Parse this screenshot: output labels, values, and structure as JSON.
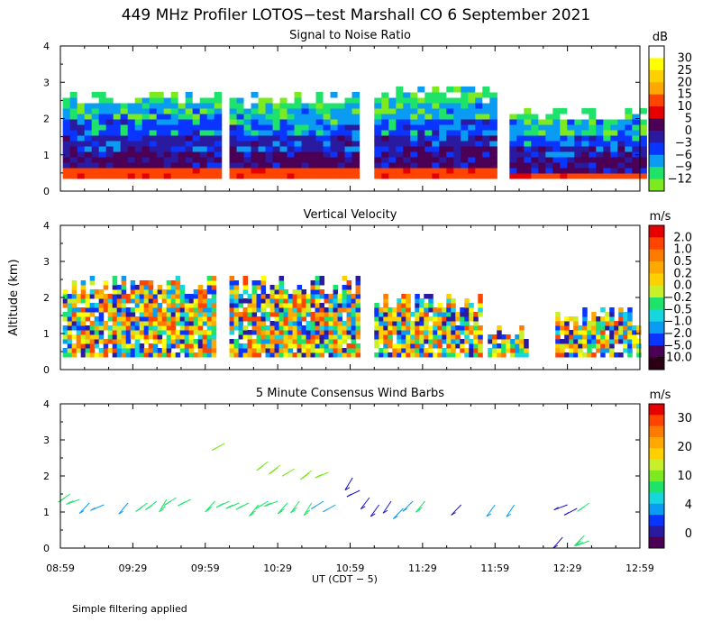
{
  "title": "449 MHz Profiler LOTOS−test Marshall CO  6 September 2021",
  "footer": "Simple filtering applied",
  "colors": {
    "palette": [
      "#4b0055",
      "#2a1aa0",
      "#0a34ff",
      "#0a9cf2",
      "#16d6e0",
      "#1ee36a",
      "#7cea1e",
      "#c8f02a",
      "#ffff00",
      "#ffd000",
      "#ffa800",
      "#ff7a00",
      "#ff3c00",
      "#e60000",
      "#ffffff"
    ]
  },
  "chart_data": [
    {
      "type": "heatmap",
      "title": "Signal to Noise Ratio",
      "units": "dB",
      "ylabel": "",
      "ylim": [
        0,
        4
      ],
      "yticks": [
        "0",
        "1",
        "2",
        "3",
        "4"
      ],
      "colorbar_labels": [
        "30",
        "25",
        "20",
        "15",
        "10",
        "5",
        "0",
        "−3",
        "−6",
        "−9",
        "−12"
      ],
      "colorbar_colors": [
        "#ffffff",
        "#ffff00",
        "#ffd000",
        "#ffa800",
        "#ff4400",
        "#e60000",
        "#4b0055",
        "#2a1aa0",
        "#0a34ff",
        "#0a9cf2",
        "#1ee36a",
        "#7cea1e"
      ],
      "data_segments": [
        {
          "start": "09:00",
          "end": "10:05",
          "top_km": 2.7
        },
        {
          "start": "10:09",
          "end": "11:02",
          "top_km": 2.6
        },
        {
          "start": "11:09",
          "end": "11:58",
          "top_km": 2.8
        },
        {
          "start": "12:05",
          "end": "12:59",
          "top_km": 2.2
        }
      ]
    },
    {
      "type": "heatmap",
      "title": "Vertical Velocity",
      "units": "m/s",
      "ylabel": "Altitude (km)",
      "ylim": [
        0,
        4
      ],
      "yticks": [
        "0",
        "1",
        "2",
        "3",
        "4"
      ],
      "colorbar_labels": [
        "2.0",
        "1.0",
        "0.5",
        "0.2",
        "0.0",
        "−0.2",
        "−0.5",
        "−1.0",
        "−2.0",
        "−5.0",
        "−10.0"
      ],
      "colorbar_colors": [
        "#e60000",
        "#ff4400",
        "#ff7a00",
        "#ffa800",
        "#ffd000",
        "#c8f02a",
        "#1ee36a",
        "#16d6e0",
        "#0a9cf2",
        "#0a34ff",
        "#4b0055",
        "#2b0012"
      ],
      "data_segments": [
        {
          "start": "09:00",
          "end": "10:02",
          "top_km": 2.6
        },
        {
          "start": "10:09",
          "end": "11:02",
          "top_km": 2.6
        },
        {
          "start": "11:09",
          "end": "11:53",
          "top_km": 2.1
        },
        {
          "start": "11:56",
          "end": "12:12",
          "top_km": 1.2
        },
        {
          "start": "12:24",
          "end": "12:59",
          "top_km": 1.7
        }
      ]
    },
    {
      "type": "scatter",
      "title": "5 Minute Consensus Wind Barbs",
      "units": "m/s",
      "xlabel": "UT  (CDT − 5)",
      "ylabel": "",
      "ylim": [
        0,
        4
      ],
      "yticks": [
        "0",
        "1",
        "2",
        "3",
        "4"
      ],
      "xticks": [
        "08:59",
        "09:29",
        "09:59",
        "10:29",
        "10:59",
        "11:29",
        "11:59",
        "12:29",
        "12:59"
      ],
      "colorbar_labels": [
        "30",
        "20",
        "10",
        "4",
        "0"
      ],
      "colorbar_colors": [
        "#e60000",
        "#ff4400",
        "#ff7a00",
        "#ffa800",
        "#ffd000",
        "#c8f02a",
        "#7cea1e",
        "#1ee36a",
        "#16d6e0",
        "#0a9cf2",
        "#0a34ff",
        "#2a1aa0",
        "#4b0055"
      ],
      "barbs": [
        {
          "time": "09:03",
          "alt_km": 1.5,
          "speed": 10
        },
        {
          "time": "09:07",
          "alt_km": 1.35,
          "speed": 9
        },
        {
          "time": "09:11",
          "alt_km": 1.25,
          "speed": 7
        },
        {
          "time": "09:17",
          "alt_km": 1.2,
          "speed": 6
        },
        {
          "time": "09:27",
          "alt_km": 1.25,
          "speed": 6
        },
        {
          "time": "09:35",
          "alt_km": 1.25,
          "speed": 8
        },
        {
          "time": "09:39",
          "alt_km": 1.3,
          "speed": 9
        },
        {
          "time": "09:43",
          "alt_km": 1.35,
          "speed": 10
        },
        {
          "time": "09:47",
          "alt_km": 1.4,
          "speed": 11
        },
        {
          "time": "09:53",
          "alt_km": 1.35,
          "speed": 9
        },
        {
          "time": "10:03",
          "alt_km": 1.3,
          "speed": 9
        },
        {
          "time": "10:09",
          "alt_km": 1.3,
          "speed": 10
        },
        {
          "time": "10:13",
          "alt_km": 1.25,
          "speed": 8
        },
        {
          "time": "10:17",
          "alt_km": 1.25,
          "speed": 9
        },
        {
          "time": "10:21",
          "alt_km": 1.2,
          "speed": 9
        },
        {
          "time": "10:25",
          "alt_km": 1.3,
          "speed": 10
        },
        {
          "time": "10:29",
          "alt_km": 1.3,
          "speed": 10
        },
        {
          "time": "10:33",
          "alt_km": 1.25,
          "speed": 9
        },
        {
          "time": "10:38",
          "alt_km": 1.3,
          "speed": 8
        },
        {
          "time": "10:43",
          "alt_km": 1.25,
          "speed": 8
        },
        {
          "time": "10:48",
          "alt_km": 1.3,
          "speed": 7
        },
        {
          "time": "10:53",
          "alt_km": 1.2,
          "speed": 6
        },
        {
          "time": "10:07",
          "alt_km": 2.9,
          "speed": 12
        },
        {
          "time": "10:25",
          "alt_km": 2.4,
          "speed": 12
        },
        {
          "time": "10:30",
          "alt_km": 2.3,
          "speed": 13
        },
        {
          "time": "10:36",
          "alt_km": 2.2,
          "speed": 12
        },
        {
          "time": "10:43",
          "alt_km": 2.15,
          "speed": 13
        },
        {
          "time": "10:50",
          "alt_km": 2.1,
          "speed": 12
        },
        {
          "time": "11:00",
          "alt_km": 1.95,
          "speed": 3
        },
        {
          "time": "11:03",
          "alt_km": 1.6,
          "speed": 3
        },
        {
          "time": "11:07",
          "alt_km": 1.4,
          "speed": 2
        },
        {
          "time": "11:11",
          "alt_km": 1.2,
          "speed": 2
        },
        {
          "time": "11:16",
          "alt_km": 1.3,
          "speed": 3
        },
        {
          "time": "11:21",
          "alt_km": 1.1,
          "speed": 4
        },
        {
          "time": "11:25",
          "alt_km": 1.3,
          "speed": 7
        },
        {
          "time": "11:30",
          "alt_km": 1.3,
          "speed": 9
        },
        {
          "time": "11:45",
          "alt_km": 1.2,
          "speed": 2
        },
        {
          "time": "11:59",
          "alt_km": 1.2,
          "speed": 5
        },
        {
          "time": "12:07",
          "alt_km": 1.2,
          "speed": 6
        },
        {
          "time": "12:29",
          "alt_km": 1.2,
          "speed": 2
        },
        {
          "time": "12:33",
          "alt_km": 1.1,
          "speed": 3
        },
        {
          "time": "12:38",
          "alt_km": 1.25,
          "speed": 10
        },
        {
          "time": "12:27",
          "alt_km": 0.3,
          "speed": 1
        },
        {
          "time": "12:36",
          "alt_km": 0.35,
          "speed": 9
        },
        {
          "time": "12:38",
          "alt_km": 0.2,
          "speed": 9
        }
      ]
    }
  ]
}
